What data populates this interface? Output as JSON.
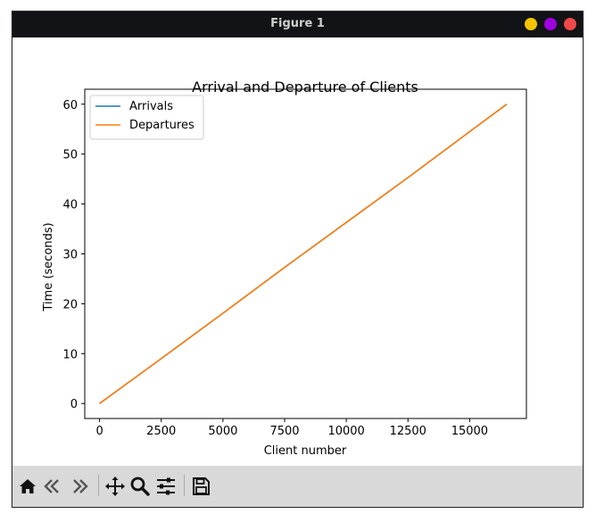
{
  "window": {
    "title": "Figure 1",
    "buttons": {
      "minimize_color": "#f5c400",
      "maximize_color": "#a000e0",
      "close_color": "#f04848"
    }
  },
  "toolbar": {
    "items": [
      "home-icon",
      "back-icon",
      "forward-icon",
      "pan-icon",
      "zoom-icon",
      "configure-subplots-icon",
      "save-icon"
    ]
  },
  "chart_data": {
    "type": "line",
    "title": "Arrival and Departure of Clients",
    "xlabel": "Client number",
    "ylabel": "Time (seconds)",
    "xlim": [
      -600,
      17300
    ],
    "ylim": [
      -3,
      63
    ],
    "xticks": [
      0,
      2500,
      5000,
      7500,
      10000,
      12500,
      15000
    ],
    "xtick_labels": [
      "0",
      "2500",
      "5000",
      "7500",
      "10000",
      "12500",
      "15000"
    ],
    "yticks": [
      0,
      10,
      20,
      30,
      40,
      50,
      60
    ],
    "ytick_labels": [
      "0",
      "10",
      "20",
      "30",
      "40",
      "50",
      "60"
    ],
    "grid": false,
    "legend_position": "upper-left",
    "x": [
      0,
      2500,
      5000,
      7500,
      10000,
      12500,
      15000,
      16500
    ],
    "series": [
      {
        "name": "Arrivals",
        "color": "#1f77b4",
        "values": [
          0,
          9.0,
          18.1,
          27.3,
          36.3,
          45.3,
          54.5,
          60
        ]
      },
      {
        "name": "Departures",
        "color": "#ff7f0e",
        "values": [
          0,
          9.0,
          18.1,
          27.3,
          36.3,
          45.3,
          54.5,
          60
        ]
      }
    ]
  }
}
